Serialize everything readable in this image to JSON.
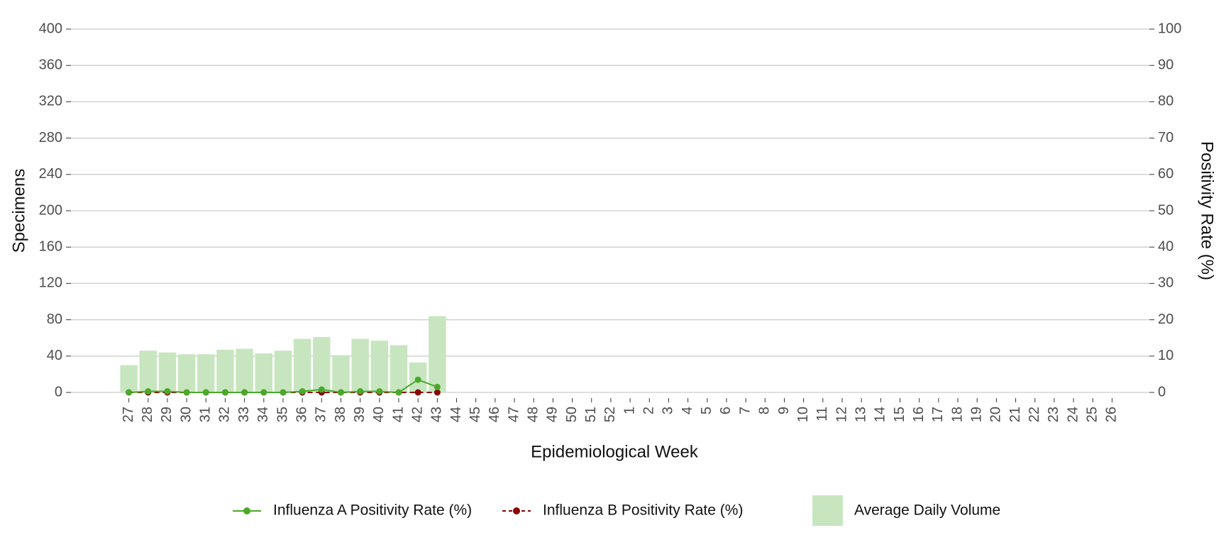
{
  "chart_data": {
    "type": "bar_line",
    "xlabel": "Epidemiological Week",
    "ylabel": "Specimens",
    "y2label": "Positivity Rate (%)",
    "categories": [
      "27",
      "28",
      "29",
      "30",
      "31",
      "32",
      "33",
      "34",
      "35",
      "36",
      "37",
      "38",
      "39",
      "40",
      "41",
      "42",
      "43",
      "44",
      "45",
      "46",
      "47",
      "48",
      "49",
      "50",
      "51",
      "52",
      "1",
      "2",
      "3",
      "4",
      "5",
      "6",
      "7",
      "8",
      "9",
      "10",
      "11",
      "12",
      "13",
      "14",
      "15",
      "16",
      "17",
      "18",
      "19",
      "20",
      "21",
      "22",
      "23",
      "24",
      "25",
      "26"
    ],
    "series": [
      {
        "name": "Influenza A Positivity Rate (%)",
        "type": "line",
        "axis": "y2",
        "color": "#4aa82a",
        "dashed": false,
        "values": [
          0,
          0.3,
          0.3,
          0,
          0,
          0,
          0,
          0,
          0,
          0.3,
          0.8,
          0,
          0.3,
          0.3,
          0,
          3.5,
          1.5,
          null,
          null,
          null,
          null,
          null,
          null,
          null,
          null,
          null,
          null,
          null,
          null,
          null,
          null,
          null,
          null,
          null,
          null,
          null,
          null,
          null,
          null,
          null,
          null,
          null,
          null,
          null,
          null,
          null,
          null,
          null,
          null,
          null,
          null,
          null
        ]
      },
      {
        "name": "Influenza B Positivity Rate (%)",
        "type": "line",
        "axis": "y2",
        "color": "#8b0000",
        "dashed": true,
        "values": [
          0,
          0,
          0,
          0,
          0,
          0,
          0,
          0,
          0,
          0,
          0,
          0,
          0,
          0,
          0,
          0,
          0,
          null,
          null,
          null,
          null,
          null,
          null,
          null,
          null,
          null,
          null,
          null,
          null,
          null,
          null,
          null,
          null,
          null,
          null,
          null,
          null,
          null,
          null,
          null,
          null,
          null,
          null,
          null,
          null,
          null,
          null,
          null,
          null,
          null,
          null,
          null
        ]
      },
      {
        "name": "Average Daily Volume",
        "type": "bar",
        "axis": "y",
        "color": "#c7e6bf",
        "values": [
          30,
          46,
          44,
          42,
          42,
          47,
          48,
          43,
          46,
          59,
          61,
          41,
          59,
          57,
          52,
          33,
          84,
          null,
          null,
          null,
          null,
          null,
          null,
          null,
          null,
          null,
          null,
          null,
          null,
          null,
          null,
          null,
          null,
          null,
          null,
          null,
          null,
          null,
          null,
          null,
          null,
          null,
          null,
          null,
          null,
          null,
          null,
          null,
          null,
          null,
          null,
          null
        ]
      }
    ],
    "ylim": [
      0,
      400
    ],
    "yticks": [
      0,
      40,
      80,
      120,
      160,
      200,
      240,
      280,
      320,
      360,
      400
    ],
    "y2lim": [
      0,
      100
    ],
    "y2ticks": [
      0,
      10,
      20,
      30,
      40,
      50,
      60,
      70,
      80,
      90,
      100
    ],
    "grid": true,
    "legend": "bottom"
  }
}
